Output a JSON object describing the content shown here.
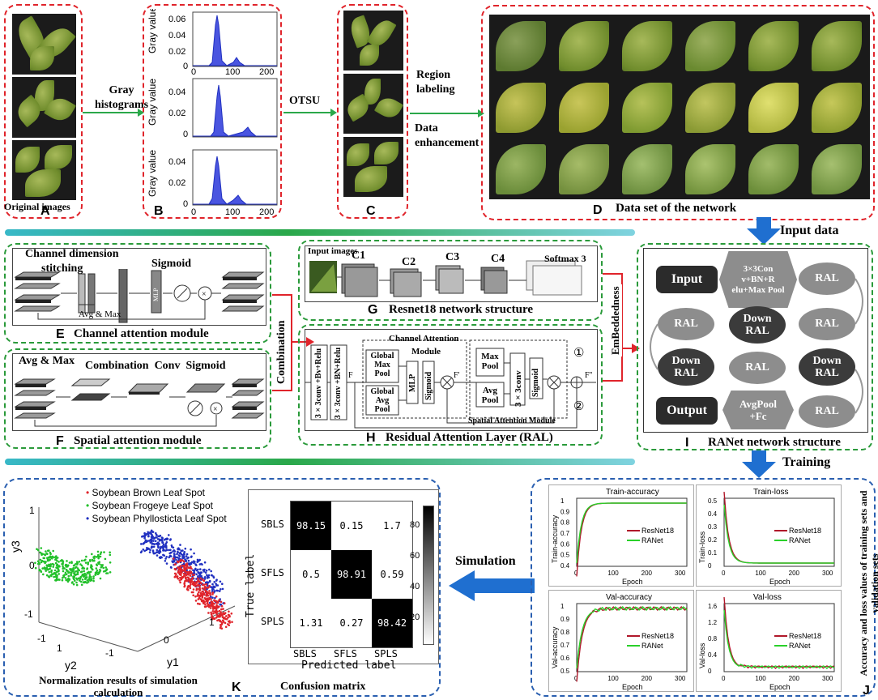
{
  "top": {
    "original_images": "Original images",
    "gray_histograms": "Gray histograms",
    "otsu": "OTSU",
    "region_labeling": "Region labeling",
    "data_enhancement": "Data enhancement",
    "data_set": "Data set of the network",
    "input_data": "Input data",
    "letters": {
      "A": "A",
      "B": "B",
      "C": "C",
      "D": "D"
    },
    "hist_axis": {
      "ylabel": "Gray value",
      "ticks_x": [
        "0",
        "100",
        "200"
      ],
      "h1_y": [
        "0.06",
        "0.04",
        "0.02",
        "0"
      ],
      "h2_y": [
        "0.04",
        "0.02",
        "0"
      ],
      "h3_y": [
        "0.04",
        "0.02",
        "0"
      ]
    }
  },
  "middle": {
    "channel_dim": "Channel dimension",
    "stitching": "stitching",
    "sigmoid": "Sigmoid",
    "avg_max_small": "Avg & Max",
    "mlp": "MLP",
    "channel_attention_module": "Channel attention module",
    "E": "E",
    "avg_max": "Avg & Max",
    "combination_conv_sigmoid": "Combination  Conv  Sigmoid",
    "spatial_attention_module": "Spatial attention module",
    "F": "F",
    "combination": "Combination",
    "resnet": {
      "input_images": "Input images",
      "c1": "C1",
      "c2": "C2",
      "c3": "C3",
      "c4": "C4",
      "softmax": "Softmax 3",
      "caption": "Resnet18 network structure",
      "G": "G"
    },
    "ral": {
      "channel_attention": "Channel Attention",
      "module": "Module",
      "conv_a": "3 × 3conv +Bv+Relu",
      "conv_b": "3 × 3conv +BN+Relu",
      "global_max_pool": "Global Max Pool",
      "global_avg_pool": "Global Avg Pool",
      "mlp": "MLP",
      "sigmoid": "Sigmoid",
      "max_pool": "Max Pool",
      "avg_pool": "Avg Pool",
      "conv3": "3 × 3conv",
      "sigmoid2": "Sigmoid",
      "spatial_attention_module": "Spatial Attention Module",
      "f": "F",
      "f1": "F'",
      "f2": "F''",
      "c1": "①",
      "c2": "②",
      "caption": "Residual Attention Layer (RAL)",
      "H": "H"
    },
    "embeddedness": "EmBeddedness",
    "ranet": {
      "input": "Input",
      "conv": "3×3Con v+BN+R elu+Max Pool",
      "ral": "RAL",
      "down_ral": "Down RAL",
      "output": "Output",
      "avgpool": "AvgPool +Fc",
      "caption": "RANet network structure",
      "I": "I"
    }
  },
  "bottom": {
    "training": "Training",
    "simulation": "Simulation",
    "scatter": {
      "legend": [
        "Soybean Brown Leaf Spot",
        "Soybean Frogeye Leaf Spot",
        "Soybean Phyllosticta Leaf Spot"
      ],
      "colors": [
        "#e0242b",
        "#22c02a",
        "#2030c0"
      ],
      "y3": "y3",
      "y2": "y2",
      "y1": "y1",
      "ticks": [
        "1",
        "0",
        "-1",
        "-1",
        "1",
        "-1",
        "0",
        "1"
      ],
      "caption": "Normalization results of simulation calculation"
    },
    "confusion": {
      "row_labels": [
        "SBLS",
        "SFLS",
        "SPLS"
      ],
      "col_labels": [
        "SBLS",
        "SFLS",
        "SPLS"
      ],
      "matrix": [
        [
          "98.15",
          "0.15",
          "1.7"
        ],
        [
          "0.5",
          "98.91",
          "0.59"
        ],
        [
          "1.31",
          "0.27",
          "98.42"
        ]
      ],
      "ylabel": "True label",
      "xlabel": "Predicted label",
      "colorbar": [
        "80",
        "60",
        "40",
        "20"
      ],
      "caption": "Confusion matrix"
    },
    "K": "K",
    "J": "J",
    "side_label": "Accuracy and loss values of training sets and validation sets",
    "plots": [
      {
        "title": "Train-accuracy",
        "ylabel": "Train-accuracy",
        "xlabel": "Epoch",
        "yticks": [
          "1",
          "0.9",
          "0.8",
          "0.7",
          "0.6",
          "0.5",
          "0.4"
        ],
        "xticks": [
          "0",
          "100",
          "200",
          "300"
        ],
        "legend": [
          "ResNet18",
          "RANet"
        ]
      },
      {
        "title": "Train-loss",
        "ylabel": "Train-loss",
        "xlabel": "Epoch",
        "yticks": [
          "0.5",
          "0.4",
          "0.3",
          "0.2",
          "0.1",
          "0"
        ],
        "xticks": [
          "0",
          "100",
          "200",
          "300"
        ],
        "legend": [
          "ResNet18",
          "RANet"
        ]
      },
      {
        "title": "Val-accuracy",
        "ylabel": "Val-accuracy",
        "xlabel": "Epoch",
        "yticks": [
          "1",
          "0.9",
          "0.8",
          "0.7",
          "0.6",
          "0.5"
        ],
        "xticks": [
          "0",
          "100",
          "200",
          "300"
        ],
        "legend": [
          "ResNet18",
          "RANet"
        ]
      },
      {
        "title": "Val-loss",
        "ylabel": "Val-loss",
        "xlabel": "Epoch",
        "yticks": [
          "1.6",
          "1.2",
          "0.8",
          "0.4",
          "0"
        ],
        "xticks": [
          "0",
          "100",
          "200",
          "300"
        ],
        "legend": [
          "ResNet18",
          "RANet"
        ]
      }
    ],
    "series_colors": {
      "resnet": "#b0182a",
      "ranet": "#2ad02a"
    }
  }
}
